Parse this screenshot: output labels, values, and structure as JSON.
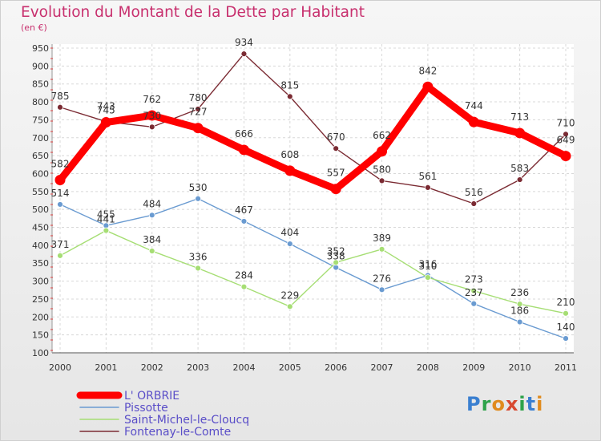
{
  "title": "Evolution du Montant de la Dette par Habitant",
  "subtitle": "(en €)",
  "brand": "Proxiti",
  "chart_data": {
    "type": "line",
    "x": [
      "2000",
      "2001",
      "2002",
      "2003",
      "2004",
      "2005",
      "2006",
      "2007",
      "2008",
      "2009",
      "2010",
      "2011"
    ],
    "ylim": [
      100,
      950
    ],
    "yticks": [
      100,
      150,
      200,
      250,
      300,
      350,
      400,
      450,
      500,
      550,
      600,
      650,
      700,
      750,
      800,
      850,
      900,
      950
    ],
    "grid": true,
    "legend_position": "bottom-left",
    "series": [
      {
        "name": "L' ORBRIE",
        "color": "#ff0000",
        "values": [
          582,
          743,
          762,
          727,
          666,
          608,
          557,
          662,
          842,
          744,
          713,
          649
        ]
      },
      {
        "name": "Pissotte",
        "color": "#6a9bd1",
        "values": [
          514,
          455,
          484,
          530,
          467,
          404,
          338,
          276,
          316,
          237,
          186,
          140
        ]
      },
      {
        "name": "Saint-Michel-le-Cloucq",
        "color": "#a6de74",
        "values": [
          371,
          441,
          384,
          336,
          284,
          229,
          352,
          389,
          310,
          273,
          236,
          210
        ]
      },
      {
        "name": "Fontenay-le-Comte",
        "color": "#7b2b33",
        "values": [
          785,
          745,
          730,
          780,
          934,
          815,
          670,
          580,
          561,
          516,
          583,
          710
        ]
      }
    ]
  }
}
